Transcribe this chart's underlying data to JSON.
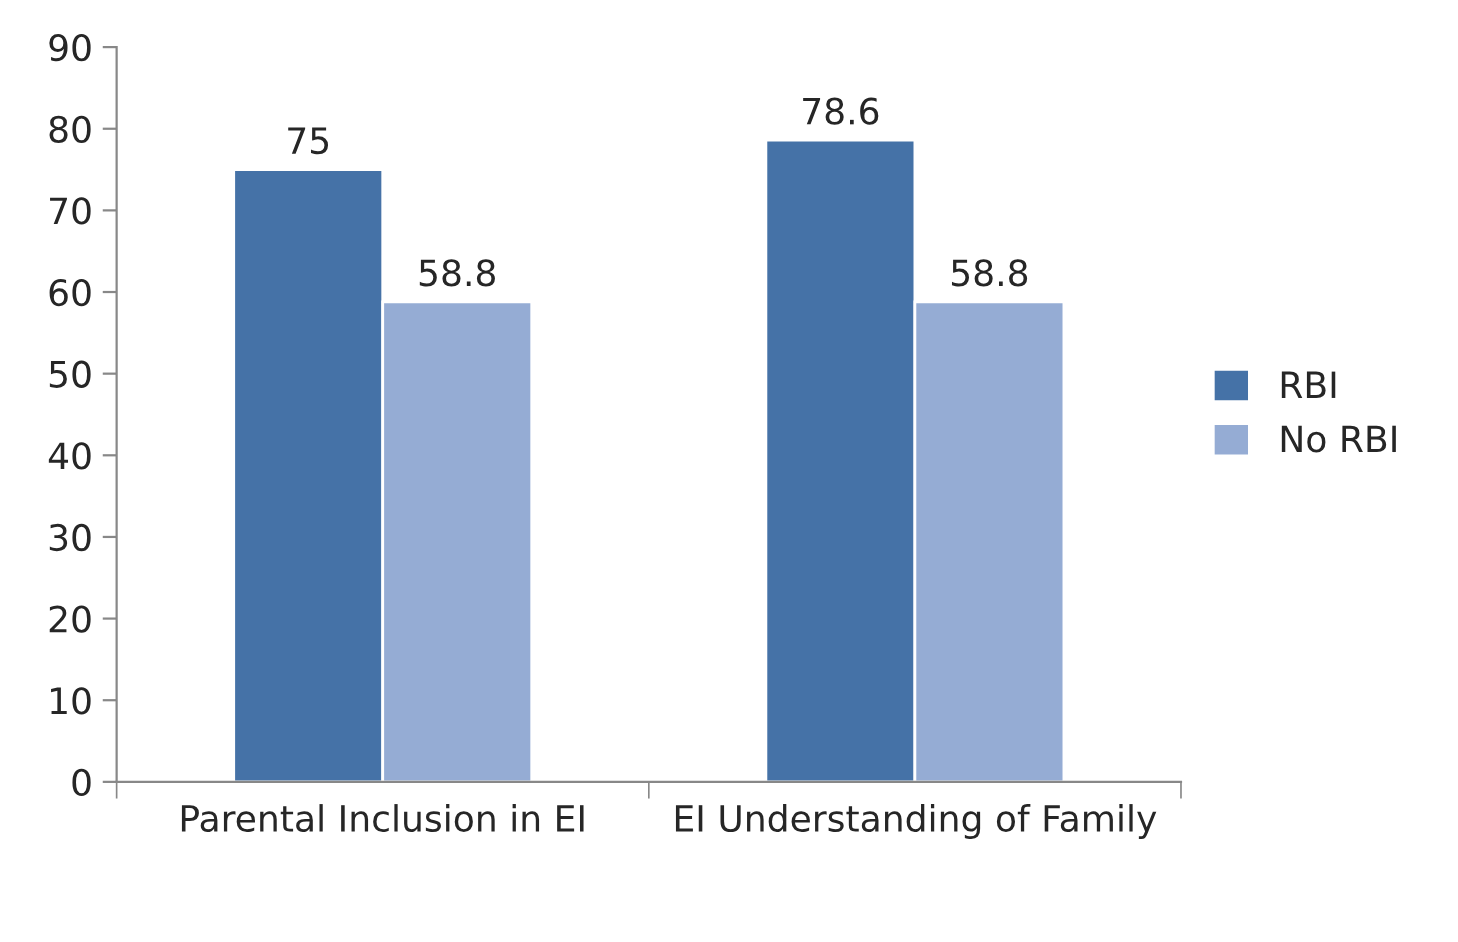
{
  "chart_data": {
    "type": "bar",
    "categories": [
      "Parental Inclusion in EI",
      "EI Understanding of Family"
    ],
    "series": [
      {
        "name": "RBI",
        "color": "#4572a7",
        "values": [
          75,
          78.6
        ]
      },
      {
        "name": "No RBI",
        "color": "#95acd4",
        "values": [
          58.8,
          58.8
        ]
      }
    ],
    "ylim": [
      0,
      90
    ],
    "yticks": [
      0,
      10,
      20,
      30,
      40,
      50,
      60,
      70,
      80,
      90
    ],
    "data_labels": true,
    "grid": false,
    "legend": "right"
  }
}
